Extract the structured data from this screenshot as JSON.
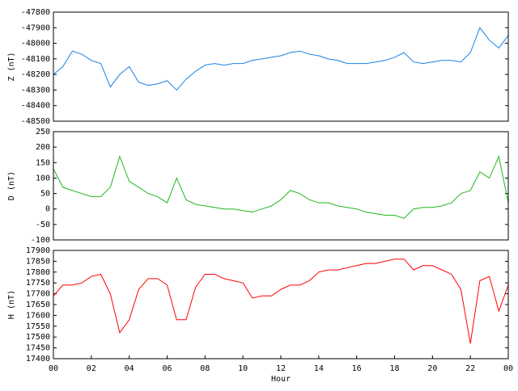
{
  "chart_data": [
    {
      "type": "line",
      "ylabel": "Z (nT)",
      "xlim": [
        0,
        24
      ],
      "ylim": [
        -48500,
        -47800
      ],
      "yticks": [
        -48500,
        -48400,
        -48300,
        -48200,
        -48100,
        -48000,
        -47900,
        -47800
      ],
      "x": [
        0,
        0.5,
        1,
        1.5,
        2,
        2.5,
        3,
        3.5,
        4,
        4.5,
        5,
        5.5,
        6,
        6.5,
        7,
        7.5,
        8,
        8.5,
        9,
        9.5,
        10,
        10.5,
        11,
        11.5,
        12,
        12.5,
        13,
        13.5,
        14,
        14.5,
        15,
        15.5,
        16,
        16.5,
        17,
        17.5,
        18,
        18.5,
        19,
        19.5,
        20,
        20.5,
        21,
        21.5,
        22,
        22.5,
        23,
        23.5,
        24
      ],
      "series": [
        {
          "color": "#1a80e6",
          "values": [
            -48200,
            -48150,
            -48050,
            -48070,
            -48110,
            -48130,
            -48280,
            -48200,
            -48150,
            -48250,
            -48270,
            -48260,
            -48240,
            -48300,
            -48230,
            -48180,
            -48140,
            -48130,
            -48140,
            -48130,
            -48130,
            -48110,
            -48100,
            -48090,
            -48080,
            -48060,
            -48050,
            -48070,
            -48080,
            -48100,
            -48110,
            -48130,
            -48130,
            -48130,
            -48120,
            -48110,
            -48090,
            -48060,
            -48120,
            -48130,
            -48120,
            -48110,
            -48110,
            -48120,
            -48060,
            -47900,
            -47980,
            -48030,
            -47950
          ]
        }
      ]
    },
    {
      "type": "line",
      "ylabel": "D (nT)",
      "xlim": [
        0,
        24
      ],
      "ylim": [
        -100,
        250
      ],
      "yticks": [
        -100,
        -50,
        0,
        50,
        100,
        150,
        200,
        250
      ],
      "x": [
        0,
        0.5,
        1,
        1.5,
        2,
        2.5,
        3,
        3.5,
        4,
        4.5,
        5,
        5.5,
        6,
        6.5,
        7,
        7.5,
        8,
        8.5,
        9,
        9.5,
        10,
        10.5,
        11,
        11.5,
        12,
        12.5,
        13,
        13.5,
        14,
        14.5,
        15,
        15.5,
        16,
        16.5,
        17,
        17.5,
        18,
        18.5,
        19,
        19.5,
        20,
        20.5,
        21,
        21.5,
        22,
        22.5,
        23,
        23.5,
        24
      ],
      "series": [
        {
          "color": "#1cb81c",
          "values": [
            130,
            70,
            60,
            50,
            40,
            40,
            70,
            170,
            90,
            70,
            50,
            40,
            20,
            100,
            30,
            15,
            10,
            5,
            0,
            0,
            -5,
            -10,
            0,
            10,
            30,
            60,
            50,
            30,
            20,
            20,
            10,
            5,
            0,
            -10,
            -15,
            -20,
            -20,
            -30,
            0,
            5,
            5,
            10,
            20,
            50,
            60,
            120,
            100,
            170,
            20
          ]
        }
      ]
    },
    {
      "type": "line",
      "ylabel": "H (nT)",
      "xlabel": "Hour",
      "xlim": [
        0,
        24
      ],
      "ylim": [
        17400,
        17900
      ],
      "yticks": [
        17400,
        17450,
        17500,
        17550,
        17600,
        17650,
        17700,
        17750,
        17800,
        17850,
        17900
      ],
      "xticks": [
        {
          "value": 0,
          "label": "00"
        },
        {
          "value": 2,
          "label": "02"
        },
        {
          "value": 4,
          "label": "04"
        },
        {
          "value": 6,
          "label": "06"
        },
        {
          "value": 8,
          "label": "08"
        },
        10,
        12,
        14,
        16,
        18,
        20,
        22,
        {
          "value": 24,
          "label": "00"
        }
      ],
      "x": [
        0,
        0.5,
        1,
        1.5,
        2,
        2.5,
        3,
        3.5,
        4,
        4.5,
        5,
        5.5,
        6,
        6.5,
        7,
        7.5,
        8,
        8.5,
        9,
        9.5,
        10,
        10.5,
        11,
        11.5,
        12,
        12.5,
        13,
        13.5,
        14,
        14.5,
        15,
        15.5,
        16,
        16.5,
        17,
        17.5,
        18,
        18.5,
        19,
        19.5,
        20,
        20.5,
        21,
        21.5,
        22,
        22.5,
        23,
        23.5,
        24
      ],
      "series": [
        {
          "color": "#ff0000",
          "values": [
            17690,
            17740,
            17740,
            17750,
            17780,
            17790,
            17700,
            17520,
            17580,
            17720,
            17770,
            17770,
            17740,
            17580,
            17580,
            17730,
            17790,
            17790,
            17770,
            17760,
            17750,
            17680,
            17690,
            17690,
            17720,
            17740,
            17740,
            17760,
            17800,
            17810,
            17810,
            17820,
            17830,
            17840,
            17840,
            17850,
            17860,
            17860,
            17810,
            17830,
            17830,
            17810,
            17790,
            17720,
            17470,
            17760,
            17780,
            17620,
            17740
          ]
        }
      ]
    }
  ]
}
